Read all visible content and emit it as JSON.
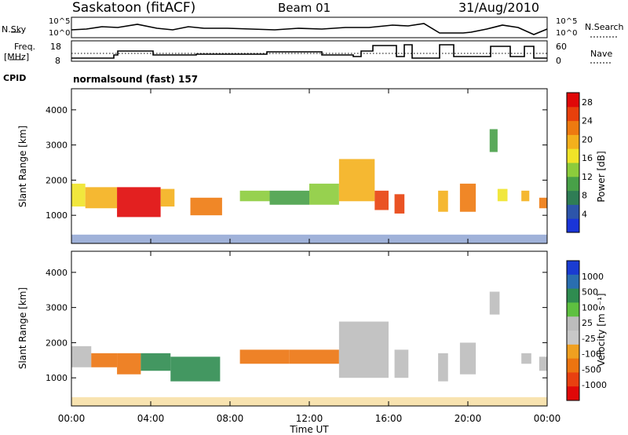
{
  "header": {
    "title": "Saskatoon (fitACF)",
    "beam": "Beam 01",
    "date": "31/Aug/2010"
  },
  "top_strips": {
    "nsky_label": "N.Sky",
    "nsky_ticks": [
      "10^5",
      "10^0"
    ],
    "nsearch_label": "N.Search",
    "nsearch_ticks": [
      "10^5",
      "10^0"
    ],
    "freq_label": "Freq.",
    "freq_unit": "[MHz]",
    "freq_ticks": [
      "18",
      "8"
    ],
    "nave_label": "Nave",
    "nave_ticks": [
      "60",
      "0"
    ],
    "cpid_label": "CPID",
    "cpid_value": "normalsound (fast) 157"
  },
  "colors": {
    "power_scale": [
      "#1a35d8",
      "#2d55aa",
      "#2f7d55",
      "#48a048",
      "#8ccc3c",
      "#f0e428",
      "#f4b01c",
      "#ee7a10",
      "#e8400c",
      "#e00808"
    ],
    "velocity_scale": [
      "#1a3cd2",
      "#2a6eb0",
      "#2f8c50",
      "#5ec040",
      "#bcbcbc",
      "#c8c8c8",
      "#f0a020",
      "#ec7410",
      "#e84010",
      "#e00808"
    ]
  },
  "chart_data": [
    {
      "type": "heatmap",
      "name": "power",
      "xlabel": "",
      "ylabel": "Slant Range [km]",
      "ylim": [
        200,
        4600
      ],
      "yticks": [
        "1000",
        "2000",
        "3000",
        "4000"
      ],
      "colorbar_label": "Power [dB]",
      "colorbar_ticks": [
        "4",
        "8",
        "12",
        "16",
        "20",
        "24",
        "28"
      ],
      "colorbar_range": [
        0,
        30
      ],
      "blocks": [
        {
          "t0": 0.0,
          "t1": 0.7,
          "r0": 1250,
          "r1": 1900,
          "v": 16
        },
        {
          "t0": 0.7,
          "t1": 2.3,
          "r0": 1200,
          "r1": 1800,
          "v": 20
        },
        {
          "t0": 2.3,
          "t1": 4.5,
          "r0": 950,
          "r1": 1800,
          "v": 27
        },
        {
          "t0": 4.5,
          "t1": 5.2,
          "r0": 1250,
          "r1": 1750,
          "v": 18
        },
        {
          "t0": 6.0,
          "t1": 7.6,
          "r0": 1000,
          "r1": 1500,
          "v": 22
        },
        {
          "t0": 8.5,
          "t1": 10.0,
          "r0": 1400,
          "r1": 1700,
          "v": 12
        },
        {
          "t0": 10.0,
          "t1": 12.0,
          "r0": 1300,
          "r1": 1700,
          "v": 10
        },
        {
          "t0": 12.0,
          "t1": 13.5,
          "r0": 1300,
          "r1": 1900,
          "v": 14
        },
        {
          "t0": 13.5,
          "t1": 15.3,
          "r0": 1400,
          "r1": 2600,
          "v": 20
        },
        {
          "t0": 15.3,
          "t1": 16.0,
          "r0": 1150,
          "r1": 1700,
          "v": 25
        },
        {
          "t0": 16.3,
          "t1": 16.8,
          "r0": 1050,
          "r1": 1600,
          "v": 24
        },
        {
          "t0": 18.5,
          "t1": 19.0,
          "r0": 1100,
          "r1": 1700,
          "v": 20
        },
        {
          "t0": 19.6,
          "t1": 20.4,
          "r0": 1100,
          "r1": 1900,
          "v": 23
        },
        {
          "t0": 21.1,
          "t1": 21.5,
          "r0": 2800,
          "r1": 3450,
          "v": 11
        },
        {
          "t0": 21.5,
          "t1": 22.0,
          "r0": 1400,
          "r1": 1750,
          "v": 16
        },
        {
          "t0": 22.7,
          "t1": 23.1,
          "r0": 1400,
          "r1": 1700,
          "v": 20
        },
        {
          "t0": 23.6,
          "t1": 24.0,
          "r0": 1200,
          "r1": 1500,
          "v": 22
        }
      ]
    },
    {
      "type": "heatmap",
      "name": "velocity",
      "xlabel": "Time UT",
      "ylabel": "Slant Range [km]",
      "ylim": [
        200,
        4600
      ],
      "yticks": [
        "1000",
        "2000",
        "3000",
        "4000"
      ],
      "xticks": [
        "00:00",
        "04:00",
        "08:00",
        "12:00",
        "16:00",
        "20:00",
        "00:00"
      ],
      "xlim": [
        0,
        24
      ],
      "colorbar_label": "Velocity [m s⁻¹]",
      "colorbar_ticks": [
        "1000",
        "500",
        "100",
        "25",
        "-25",
        "-100",
        "-500",
        "-1000"
      ],
      "blocks": [
        {
          "t0": 0.0,
          "t1": 1.0,
          "r0": 1300,
          "r1": 1900,
          "v": 0
        },
        {
          "t0": 1.0,
          "t1": 2.3,
          "r0": 1300,
          "r1": 1700,
          "v": -150
        },
        {
          "t0": 2.3,
          "t1": 3.5,
          "r0": 1100,
          "r1": 1700,
          "v": -300
        },
        {
          "t0": 3.5,
          "t1": 5.0,
          "r0": 1200,
          "r1": 1700,
          "v": 300
        },
        {
          "t0": 5.0,
          "t1": 7.5,
          "r0": 900,
          "r1": 1600,
          "v": 100
        },
        {
          "t0": 8.5,
          "t1": 11.0,
          "r0": 1400,
          "r1": 1800,
          "v": -150
        },
        {
          "t0": 11.0,
          "t1": 13.5,
          "r0": 1400,
          "r1": 1800,
          "v": -300
        },
        {
          "t0": 13.5,
          "t1": 16.0,
          "r0": 1000,
          "r1": 2600,
          "v": 0
        },
        {
          "t0": 16.3,
          "t1": 17.0,
          "r0": 1000,
          "r1": 1800,
          "v": 0
        },
        {
          "t0": 18.5,
          "t1": 19.0,
          "r0": 900,
          "r1": 1700,
          "v": 0
        },
        {
          "t0": 19.6,
          "t1": 20.4,
          "r0": 1100,
          "r1": 2000,
          "v": 0
        },
        {
          "t0": 21.1,
          "t1": 21.6,
          "r0": 2800,
          "r1": 3450,
          "v": 0
        },
        {
          "t0": 22.7,
          "t1": 23.2,
          "r0": 1400,
          "r1": 1700,
          "v": 0
        },
        {
          "t0": 23.6,
          "t1": 24.0,
          "r0": 1200,
          "r1": 1600,
          "v": 0
        }
      ]
    }
  ]
}
